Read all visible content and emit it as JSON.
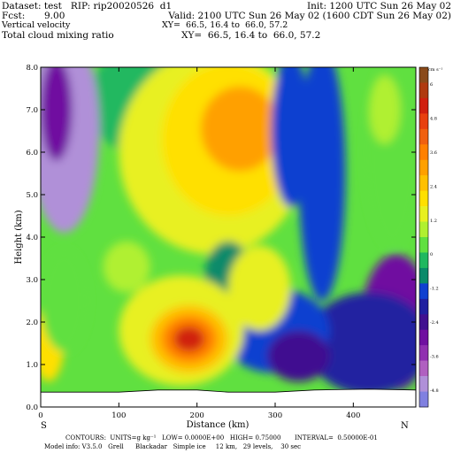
{
  "header": {
    "dataset": "Dataset: test   RIP: rip20020526  d1",
    "init": "Init: 1200 UTC Sun 26 May 02",
    "fcst_label": "Fcst:",
    "fcst_value": "9.00",
    "valid": "Valid: 2100 UTC Sun 26 May 02 (1600 CDT Sun 26 May 02)",
    "field1": "Vertical velocity",
    "xy1": "XY=  66.5, 16.4 to  66.0, 57.2",
    "field2": "Total cloud mixing ratio",
    "xy2": "XY=  66.5, 16.4 to  66.0, 57.2"
  },
  "footer": {
    "line1": "CONTOURS:  UNITS=g kg⁻¹   LOW= 0.0000E+00   HIGH= 0.75000       INTERVAL=  0.50000E-01",
    "line2": "Model info: V3.5.0   Grell      Blackadar   Simple ice     12 km,   29 levels,    30 sec"
  },
  "chart_data": {
    "type": "heatmap",
    "xlabel": "Distance (km)",
    "ylabel": "Height (km)",
    "xlim": [
      0,
      480
    ],
    "ylim": [
      0,
      8
    ],
    "x_ticks": [
      0,
      100,
      200,
      300,
      400
    ],
    "y_ticks": [
      "0.0",
      "1.0",
      "2.0",
      "3.0",
      "4.0",
      "5.0",
      "6.0",
      "7.0",
      "8.0"
    ],
    "x_end_labels": {
      "left": "S",
      "right": "N"
    },
    "colorbar": {
      "unit": "cm s⁻¹",
      "tick_labels": [
        "6",
        "4.8",
        "3.6",
        "2.4",
        "1.2",
        "0",
        "-1.2",
        "-2.4",
        "-3.6",
        "-4.8"
      ],
      "tick_values": [
        6,
        4.8,
        3.6,
        2.4,
        1.2,
        0,
        -1.2,
        -2.4,
        -3.6,
        -4.8
      ],
      "colors": [
        "#8a4a1a",
        "#b03a10",
        "#d02010",
        "#e84010",
        "#f06010",
        "#ff8000",
        "#ffa000",
        "#ffc000",
        "#ffe000",
        "#e8f020",
        "#b0f030",
        "#60e040",
        "#20b860",
        "#0a8a6a",
        "#1040d0",
        "#2020a0",
        "#401090",
        "#7010a0",
        "#9030b0",
        "#b060c0",
        "#b090d8",
        "#8080e0"
      ]
    },
    "features": [
      {
        "name": "upper updraft",
        "x_km": 255,
        "z_km": 6.55,
        "value": 3.0
      },
      {
        "name": "lower updraft core",
        "x_km": 190,
        "z_km": 1.6,
        "value": 5.0
      },
      {
        "name": "upper-left downdraft",
        "x_km": 30,
        "z_km": 6.5,
        "value": -4.5
      },
      {
        "name": "lower-right downdraft",
        "x_km": 455,
        "z_km": 2.0,
        "value": -3.0
      }
    ],
    "terrain_km": [
      [
        0,
        0.35
      ],
      [
        100,
        0.35
      ],
      [
        150,
        0.4
      ],
      [
        200,
        0.4
      ],
      [
        240,
        0.35
      ],
      [
        300,
        0.35
      ],
      [
        350,
        0.4
      ],
      [
        420,
        0.42
      ],
      [
        480,
        0.4
      ]
    ]
  }
}
